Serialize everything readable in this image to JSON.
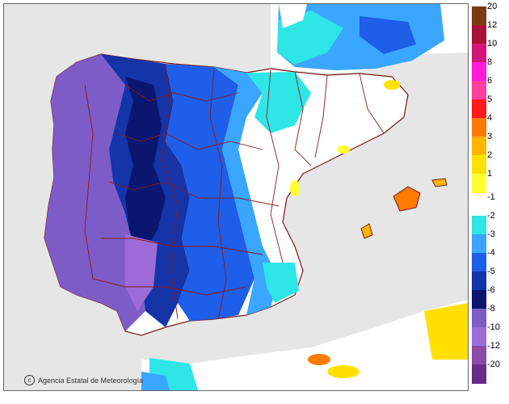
{
  "credit": {
    "icon": "copyright-icon",
    "text": "Agencia Estatal de Meteorología"
  },
  "legend": {
    "entries": [
      {
        "label": "20",
        "color": "#7a3a12"
      },
      {
        "label": "12",
        "color": "#a8123a"
      },
      {
        "label": "10",
        "color": "#d6157a"
      },
      {
        "label": "8",
        "color": "#ff1cd6"
      },
      {
        "label": "6",
        "color": "#ff3fa0"
      },
      {
        "label": "5",
        "color": "#ff1a1a"
      },
      {
        "label": "4",
        "color": "#ff7a00"
      },
      {
        "label": "3",
        "color": "#ffb400"
      },
      {
        "label": "2",
        "color": "#ffe000"
      },
      {
        "label": "1",
        "color": "#ffff30"
      },
      {
        "label": "-1",
        "color": "#ffffff"
      },
      {
        "label": "-2",
        "color": "#2fe6e6"
      },
      {
        "label": "-3",
        "color": "#3aa6ff"
      },
      {
        "label": "-4",
        "color": "#1f5ee8"
      },
      {
        "label": "-5",
        "color": "#1434a8"
      },
      {
        "label": "-6",
        "color": "#0a1670"
      },
      {
        "label": "-8",
        "color": "#7d5cc8"
      },
      {
        "label": "-10",
        "color": "#9d6cd8"
      },
      {
        "label": "-12",
        "color": "#8a4aa8"
      },
      {
        "label": "-20",
        "color": "#6a2a8a"
      }
    ]
  },
  "colors": {
    "sea": "#e6e6e6",
    "land_base": "#ffffff",
    "border": "#8b1a1a",
    "coast": "#7a1a1a"
  }
}
